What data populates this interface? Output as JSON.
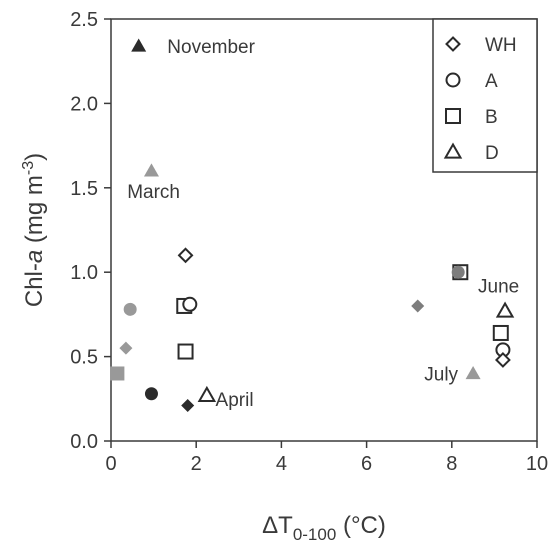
{
  "chart_data": {
    "type": "scatter",
    "xlabel": {
      "base": "ΔT",
      "sub": "0-100",
      "unit": " (°C)"
    },
    "ylabel": {
      "pre": "Chl-",
      "ital": "a",
      "unit": " (mg m",
      "sup": "-3",
      "close": ")"
    },
    "xlim": [
      0,
      10
    ],
    "ylim": [
      0,
      2.5
    ],
    "xticks": [
      "0",
      "2",
      "4",
      "6",
      "8",
      "10"
    ],
    "yticks": [
      "0.0",
      "0.5",
      "1.0",
      "1.5",
      "2.0",
      "2.5"
    ],
    "legend_position": "top-right",
    "legend": [
      {
        "label": "WH",
        "marker": "diamond"
      },
      {
        "label": "A",
        "marker": "circle"
      },
      {
        "label": "B",
        "marker": "square"
      },
      {
        "label": "D",
        "marker": "triangle"
      }
    ],
    "colors": {
      "black": "#2b2b2b",
      "gray": "#999999",
      "darkgray": "#7d7d7d",
      "open": "#ffffff"
    },
    "points": [
      {
        "x": 0.65,
        "y": 2.34,
        "marker": "triangle",
        "style": "black"
      },
      {
        "x": 0.95,
        "y": 1.6,
        "marker": "triangle",
        "style": "gray"
      },
      {
        "x": 0.35,
        "y": 0.55,
        "marker": "diamond",
        "style": "gray"
      },
      {
        "x": 0.45,
        "y": 0.78,
        "marker": "circle",
        "style": "gray"
      },
      {
        "x": 0.15,
        "y": 0.4,
        "marker": "square",
        "style": "gray"
      },
      {
        "x": 0.95,
        "y": 0.28,
        "marker": "circle",
        "style": "black"
      },
      {
        "x": 1.8,
        "y": 0.21,
        "marker": "diamond",
        "style": "black"
      },
      {
        "x": 2.25,
        "y": 0.27,
        "marker": "triangle",
        "style": "open"
      },
      {
        "x": 1.75,
        "y": 1.1,
        "marker": "diamond",
        "style": "open"
      },
      {
        "x": 1.72,
        "y": 0.8,
        "marker": "square",
        "style": "open"
      },
      {
        "x": 1.85,
        "y": 0.81,
        "marker": "circle",
        "style": "open"
      },
      {
        "x": 1.75,
        "y": 0.53,
        "marker": "square",
        "style": "open"
      },
      {
        "x": 7.2,
        "y": 0.8,
        "marker": "diamond",
        "style": "darkgray"
      },
      {
        "x": 8.2,
        "y": 1.0,
        "marker": "square",
        "style": "open"
      },
      {
        "x": 8.15,
        "y": 1.0,
        "marker": "circle",
        "style": "darkgray"
      },
      {
        "x": 9.25,
        "y": 0.77,
        "marker": "triangle",
        "style": "open"
      },
      {
        "x": 9.15,
        "y": 0.64,
        "marker": "square",
        "style": "open"
      },
      {
        "x": 9.2,
        "y": 0.54,
        "marker": "circle",
        "style": "open"
      },
      {
        "x": 9.2,
        "y": 0.48,
        "marker": "diamond",
        "style": "open"
      },
      {
        "x": 8.5,
        "y": 0.4,
        "marker": "triangle",
        "style": "gray"
      }
    ],
    "annotations": [
      {
        "text": "November",
        "x": 2.35,
        "y": 2.34,
        "anchor": "middle"
      },
      {
        "text": "March",
        "x": 1.0,
        "y": 1.48,
        "anchor": "middle"
      },
      {
        "text": "April",
        "x": 2.9,
        "y": 0.25,
        "anchor": "middle"
      },
      {
        "text": "June",
        "x": 9.1,
        "y": 0.92,
        "anchor": "middle"
      },
      {
        "text": "July",
        "x": 7.75,
        "y": 0.4,
        "anchor": "middle"
      }
    ]
  }
}
